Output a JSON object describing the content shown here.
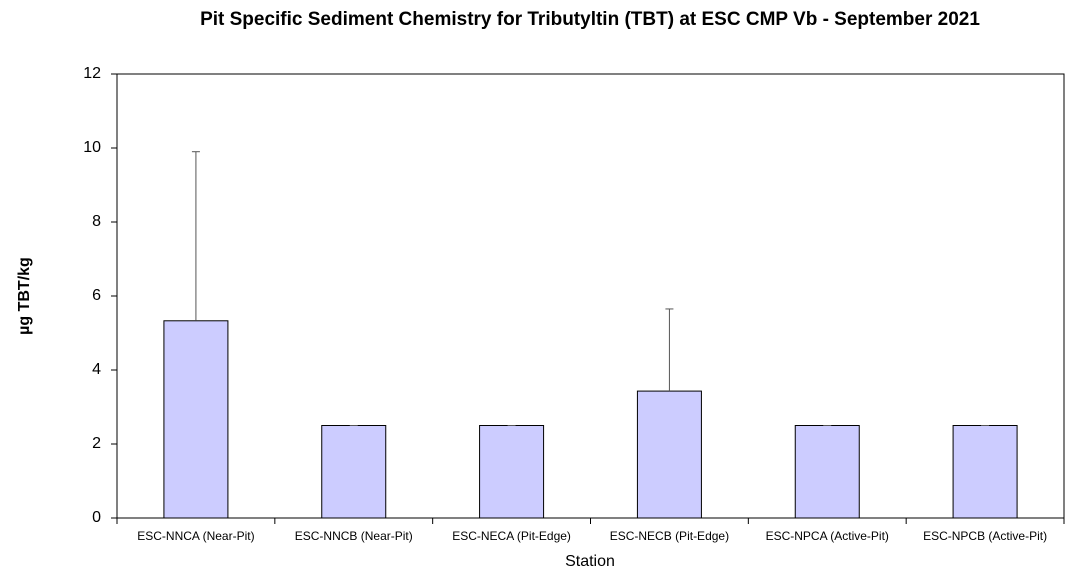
{
  "chart_data": {
    "type": "bar",
    "title": "Pit Specific Sediment Chemistry for Tributyltin (TBT) at ESC CMP Vb - September 2021",
    "x_label": "Station",
    "y_label": "µg TBT/kg",
    "categories": [
      "ESC-NNCA (Near-Pit)",
      "ESC-NNCB (Near-Pit)",
      "ESC-NECA (Pit-Edge)",
      "ESC-NECB (Pit-Edge)",
      "ESC-NPCA (Active-Pit)",
      "ESC-NPCB (Active-Pit)"
    ],
    "values": [
      5.33,
      2.5,
      2.5,
      3.43,
      2.5,
      2.5
    ],
    "errors": [
      4.57,
      0,
      0,
      2.22,
      0,
      0
    ],
    "color": "#ccccff",
    "ylim": [
      0,
      12
    ],
    "yticks": [
      0,
      2,
      4,
      6,
      8,
      10,
      12
    ]
  }
}
